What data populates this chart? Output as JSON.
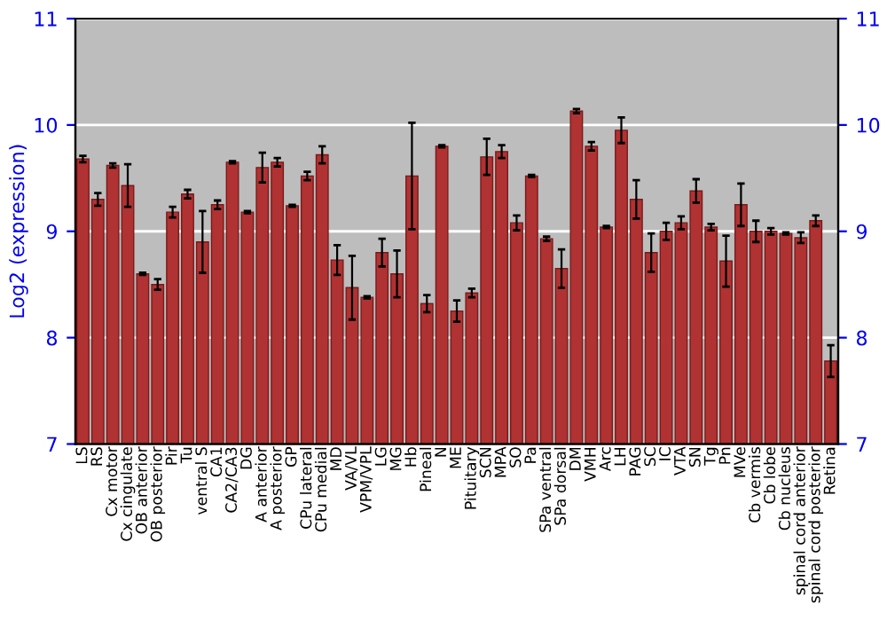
{
  "chart_data": {
    "type": "bar",
    "ylabel": "Log2 (expression)",
    "categories": [
      "LS",
      "RS",
      "Cx motor",
      "Cx cingulate",
      "OB anterior",
      "OB posterior",
      "Pir",
      "Tu",
      "ventral S",
      "CA1",
      "CA2/CA3",
      "DG",
      "A anterior",
      "A posterior",
      "GP",
      "CPu lateral",
      "CPu medial",
      "MD",
      "VA/VL",
      "VPM/VPL",
      "LG",
      "MG",
      "Hb",
      "Pineal",
      "N",
      "ME",
      "Pituitary",
      "SCN",
      "MPA",
      "SO",
      "Pa",
      "SPa ventral",
      "SPa dorsal",
      "DM",
      "VMH",
      "Arc",
      "LH",
      "PAG",
      "SC",
      "IC",
      "VTA",
      "SN",
      "Tg",
      "Pn",
      "MVe",
      "Cb vermis",
      "Cb lobe",
      "Cb nucleus",
      "spinal cord anterior",
      "spinal cord posterior",
      "Retina"
    ],
    "values": [
      9.68,
      9.3,
      9.62,
      9.43,
      8.6,
      8.5,
      9.18,
      9.35,
      8.9,
      9.25,
      9.65,
      9.18,
      9.6,
      9.65,
      9.24,
      9.52,
      9.72,
      8.73,
      8.47,
      8.38,
      8.8,
      8.6,
      9.52,
      8.32,
      9.8,
      8.25,
      8.42,
      9.7,
      9.75,
      9.08,
      9.52,
      8.93,
      8.65,
      10.13,
      9.8,
      9.04,
      9.95,
      9.3,
      8.8,
      9.0,
      9.08,
      9.38,
      9.04,
      8.72,
      9.25,
      9.0,
      9.0,
      8.98,
      8.94,
      9.1,
      7.78
    ],
    "errors": [
      0.03,
      0.06,
      0.02,
      0.2,
      0.01,
      0.05,
      0.05,
      0.04,
      0.29,
      0.04,
      0.01,
      0.01,
      0.14,
      0.04,
      0.01,
      0.04,
      0.08,
      0.14,
      0.3,
      0.01,
      0.13,
      0.22,
      0.5,
      0.08,
      0.01,
      0.1,
      0.04,
      0.17,
      0.06,
      0.07,
      0.01,
      0.02,
      0.18,
      0.02,
      0.04,
      0.01,
      0.12,
      0.18,
      0.18,
      0.08,
      0.06,
      0.11,
      0.03,
      0.24,
      0.2,
      0.1,
      0.03,
      0.01,
      0.05,
      0.05,
      0.15
    ],
    "color": "#b03232",
    "ylim": [
      7,
      11
    ],
    "yticks": [
      7,
      8,
      9,
      10,
      11
    ],
    "y2lim": [
      7,
      11
    ],
    "y2ticks": [
      7,
      8,
      9,
      10,
      11
    ],
    "grid": "y"
  }
}
